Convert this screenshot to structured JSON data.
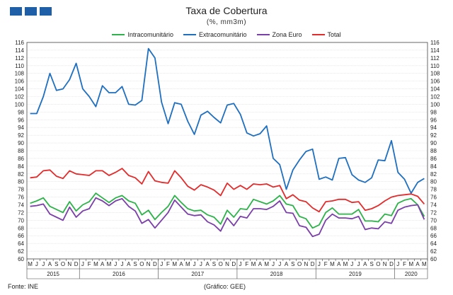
{
  "header": {
    "title": "Taxa de Cobertura",
    "subtitle": "(%, mm3m)"
  },
  "footer": {
    "source": "Fonte: INE",
    "credit": "(Gráfico: GEE)"
  },
  "logo_color": "#1f5fa8",
  "chart_data": {
    "type": "line",
    "title": "Taxa de Cobertura",
    "subtitle": "(%, mm3m)",
    "ylim": [
      60,
      116
    ],
    "ytick_step": 2,
    "grid": true,
    "legend_position": "top-center",
    "month_labels": [
      "M",
      "J",
      "J",
      "A",
      "S",
      "O",
      "N",
      "D",
      "J",
      "F",
      "M",
      "A",
      "M",
      "J",
      "J",
      "A",
      "S",
      "O",
      "N",
      "D",
      "J",
      "F",
      "M",
      "A",
      "M",
      "J",
      "J",
      "A",
      "S",
      "O",
      "N",
      "D",
      "J",
      "F",
      "M",
      "A",
      "M",
      "J",
      "J",
      "A",
      "S",
      "O",
      "N",
      "D",
      "J",
      "F",
      "M",
      "A",
      "M",
      "J",
      "J",
      "A",
      "S",
      "O",
      "N",
      "D",
      "J",
      "F",
      "M",
      "A",
      "M"
    ],
    "years": [
      {
        "label": "2015",
        "start": 0,
        "end": 7
      },
      {
        "label": "2016",
        "start": 8,
        "end": 19
      },
      {
        "label": "2017",
        "start": 20,
        "end": 31
      },
      {
        "label": "2018",
        "start": 32,
        "end": 43
      },
      {
        "label": "2019",
        "start": 44,
        "end": 55
      },
      {
        "label": "2020",
        "start": 56,
        "end": 60
      }
    ],
    "series": [
      {
        "name": "Intracomunitário",
        "color": "#2db34a",
        "values": [
          74.4,
          75.0,
          75.8,
          73.6,
          72.8,
          72.0,
          74.8,
          72.4,
          74.0,
          74.8,
          77.0,
          75.8,
          74.6,
          75.8,
          76.4,
          75.0,
          74.4,
          71.4,
          72.6,
          70.2,
          72.0,
          73.6,
          76.4,
          74.6,
          73.0,
          72.4,
          72.6,
          71.4,
          70.8,
          69.0,
          72.6,
          70.8,
          73.0,
          72.8,
          75.4,
          74.8,
          74.2,
          75.0,
          76.4,
          74.2,
          73.8,
          71.0,
          70.4,
          68.0,
          68.8,
          72.0,
          73.2,
          71.6,
          71.6,
          71.6,
          72.8,
          69.8,
          69.8,
          69.6,
          71.6,
          71.2,
          74.4,
          75.2,
          75.6,
          74.0,
          71.0
        ]
      },
      {
        "name": "Extracomunitário",
        "color": "#1f6fc0",
        "values": [
          97.6,
          97.6,
          102.0,
          108.0,
          103.6,
          104.0,
          106.4,
          110.6,
          104.0,
          102.0,
          99.4,
          104.8,
          103.0,
          103.0,
          104.6,
          100.0,
          99.8,
          101.0,
          114.4,
          112.0,
          100.6,
          95.0,
          100.4,
          100.0,
          95.6,
          92.2,
          97.2,
          98.2,
          96.6,
          95.2,
          99.8,
          100.2,
          97.4,
          92.6,
          91.8,
          92.4,
          94.4,
          86.0,
          84.4,
          78.0,
          83.0,
          85.6,
          87.8,
          88.4,
          80.6,
          81.2,
          80.4,
          86.0,
          86.2,
          81.8,
          80.4,
          79.8,
          81.0,
          85.6,
          85.4,
          90.6,
          82.4,
          80.6,
          77.0,
          79.8,
          80.8
        ]
      },
      {
        "name": "Zona Euro",
        "color": "#7a3fa8",
        "values": [
          73.6,
          73.8,
          74.2,
          71.6,
          70.8,
          70.0,
          73.4,
          70.8,
          72.4,
          73.0,
          75.8,
          75.0,
          73.8,
          75.0,
          75.6,
          73.6,
          72.4,
          69.2,
          70.2,
          68.0,
          70.0,
          72.0,
          75.2,
          73.4,
          71.6,
          71.2,
          71.4,
          69.6,
          68.8,
          67.2,
          70.6,
          68.6,
          71.0,
          70.6,
          73.0,
          73.0,
          72.8,
          73.6,
          75.0,
          72.0,
          71.8,
          68.6,
          68.2,
          65.8,
          66.4,
          70.0,
          71.6,
          70.6,
          70.6,
          70.4,
          71.0,
          67.6,
          68.0,
          67.8,
          69.6,
          69.2,
          72.6,
          73.4,
          73.8,
          74.0,
          70.2
        ]
      },
      {
        "name": "Total",
        "color": "#e32b2b",
        "values": [
          81.0,
          81.2,
          82.8,
          83.0,
          81.4,
          80.8,
          82.8,
          82.0,
          81.8,
          81.6,
          82.8,
          82.8,
          81.6,
          82.4,
          83.4,
          81.6,
          81.0,
          79.4,
          82.6,
          80.2,
          79.8,
          79.6,
          82.8,
          81.0,
          78.8,
          77.8,
          79.2,
          78.6,
          77.8,
          76.4,
          79.6,
          78.0,
          79.0,
          78.0,
          79.4,
          79.2,
          79.4,
          78.6,
          79.0,
          75.6,
          76.6,
          75.2,
          74.8,
          73.2,
          72.2,
          74.8,
          75.0,
          75.4,
          75.4,
          74.6,
          74.8,
          72.6,
          73.0,
          73.8,
          75.0,
          76.0,
          76.4,
          76.6,
          76.8,
          76.2,
          74.2
        ]
      }
    ]
  }
}
